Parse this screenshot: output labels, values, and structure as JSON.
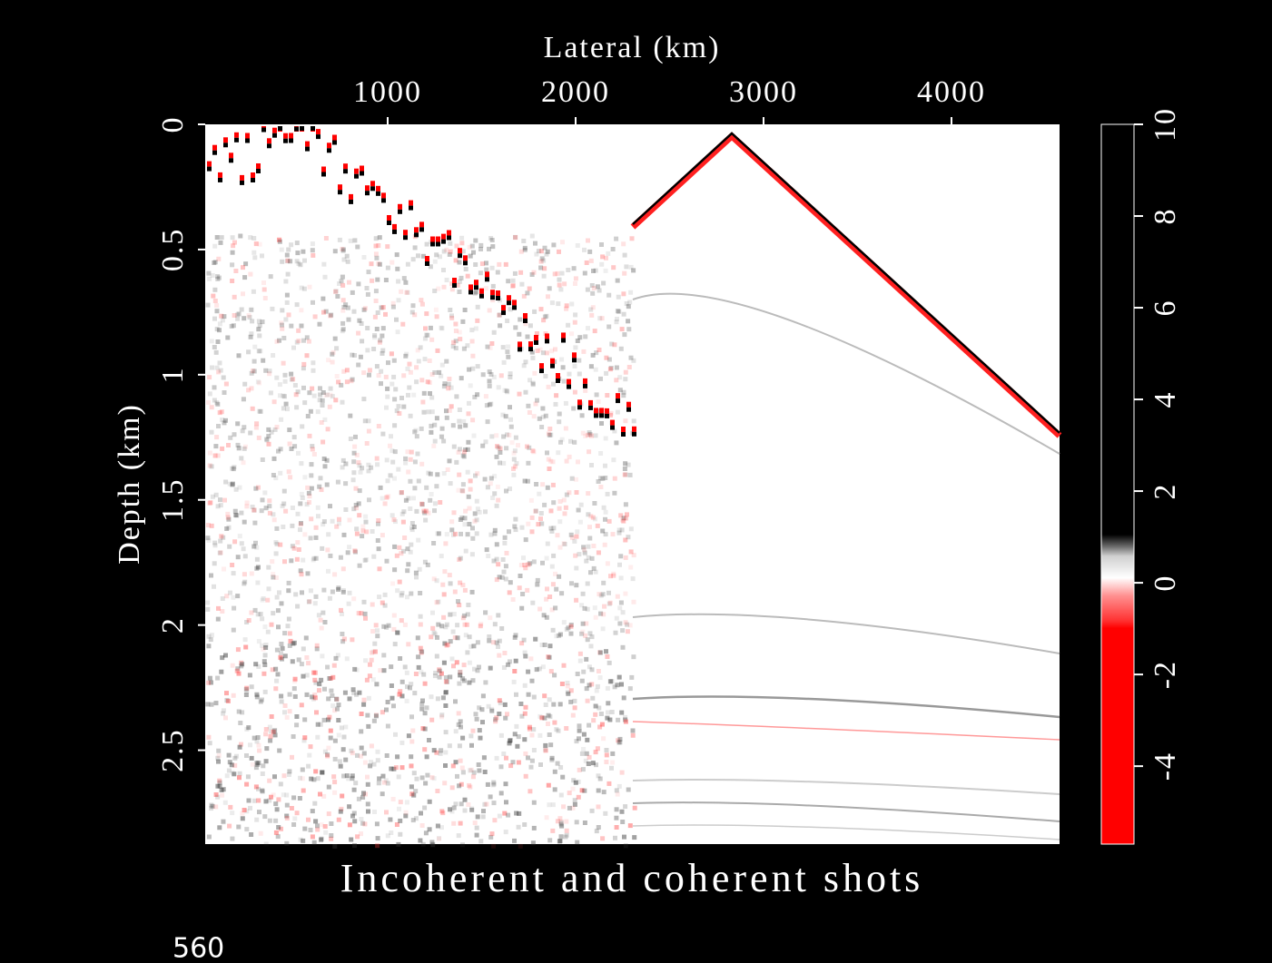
{
  "chart_data": {
    "type": "image",
    "title": "Incoherent and coherent shots",
    "xlabel": "Lateral (km)",
    "ylabel": "Depth (km)",
    "xlim": [
      29,
      4575
    ],
    "xticks": [
      1000,
      2000,
      3000,
      4000
    ],
    "x_axis_position": "top",
    "ylim": [
      0,
      2.875
    ],
    "yticks": [
      0,
      0.5,
      1,
      1.5,
      2,
      2.5
    ],
    "y_inverted": true,
    "colorbar": {
      "lim": [
        -5.7,
        10
      ],
      "ticks": [
        -4,
        -2,
        0,
        2,
        4,
        6,
        8,
        10
      ]
    }
  },
  "footer": "560"
}
